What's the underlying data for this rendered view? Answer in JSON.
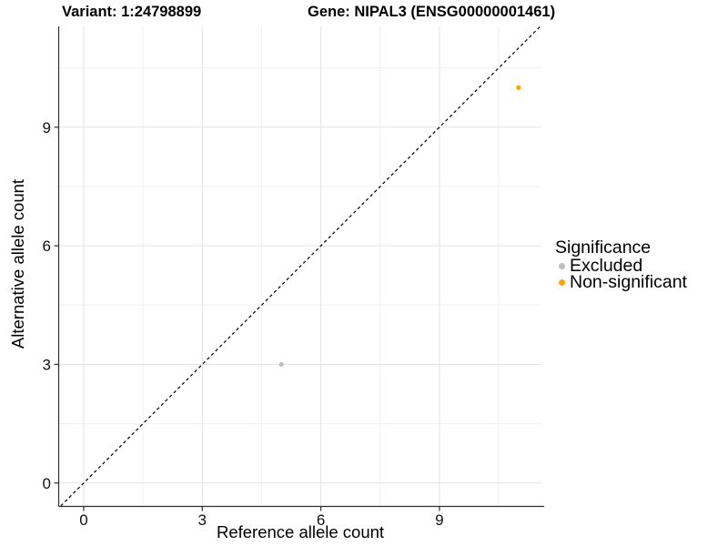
{
  "chart_data": {
    "type": "scatter",
    "title_left": "Variant: 1:24798899",
    "title_right": "Gene: NIPAL3 (ENSG00000001461)",
    "xlabel": "Reference allele count",
    "ylabel": "Alternative allele count",
    "xlim": [
      -0.62,
      11.58
    ],
    "ylim": [
      -0.58,
      11.55
    ],
    "x_major_ticks": [
      0,
      3,
      6,
      9
    ],
    "y_major_ticks": [
      0,
      3,
      6,
      9
    ],
    "x_minor_ticks": [
      1.5,
      4.5,
      7.5,
      10.5
    ],
    "y_minor_ticks": [
      1.5,
      4.5,
      7.5,
      10.5
    ],
    "grid": true,
    "reference_line": {
      "type": "identity",
      "equation": "y = x",
      "style": "dashed",
      "color": "#000000"
    },
    "series": [
      {
        "name": "Excluded",
        "color": "#bebebe",
        "points": [
          {
            "x": 5,
            "y": 3
          }
        ]
      },
      {
        "name": "Non-significant",
        "color": "#ffa500",
        "points": [
          {
            "x": 11,
            "y": 10
          }
        ]
      }
    ],
    "legend": {
      "title": "Significance",
      "position": "right"
    },
    "colors": {
      "background": "#ffffff",
      "grid_major": "#e3e3e3",
      "grid_minor": "#f0f0f0",
      "axis": "#2f2f2f",
      "tick_label": "#111111",
      "text": "#000000"
    }
  }
}
